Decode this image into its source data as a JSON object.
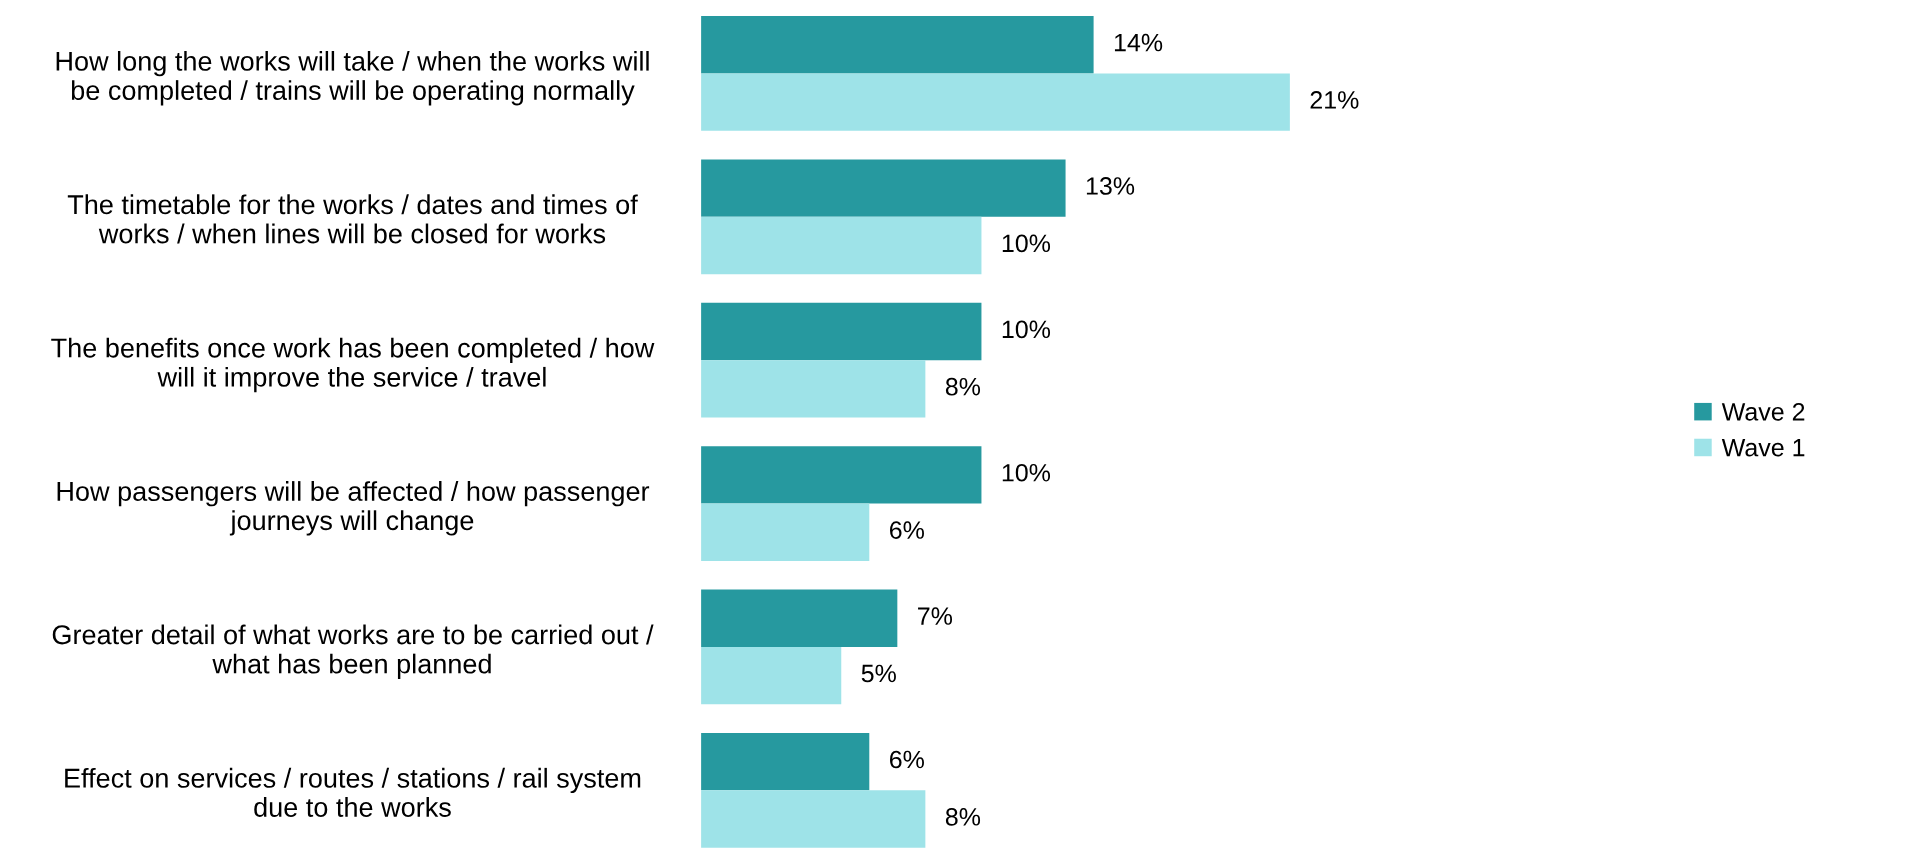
{
  "chart_data": {
    "type": "bar",
    "orientation": "horizontal",
    "categories": [
      "How long the works will take / when the works will\nbe completed / trains will be operating normally",
      "The timetable for the works / dates and times of\nworks / when lines will be closed for works",
      "The benefits once work has been completed / how\nwill it improve the service / travel",
      "How passengers will be affected / how passenger\njourneys will change",
      "Greater detail of what works are to be carried out /\nwhat has been planned",
      "Effect on services / routes / stations / rail system\ndue to the works"
    ],
    "series": [
      {
        "name": "Wave 2",
        "color": "#26999f",
        "values": [
          14,
          13,
          10,
          10,
          7,
          6
        ],
        "value_labels": [
          "14%",
          "13%",
          "10%",
          "10%",
          "7%",
          "6%"
        ]
      },
      {
        "name": "Wave 1",
        "color": "#9ee3e8",
        "values": [
          21,
          10,
          8,
          6,
          5,
          8
        ],
        "value_labels": [
          "21%",
          "10%",
          "8%",
          "6%",
          "5%",
          "8%"
        ]
      }
    ],
    "tick_labels": "y",
    "grid": false,
    "legend": "right"
  }
}
